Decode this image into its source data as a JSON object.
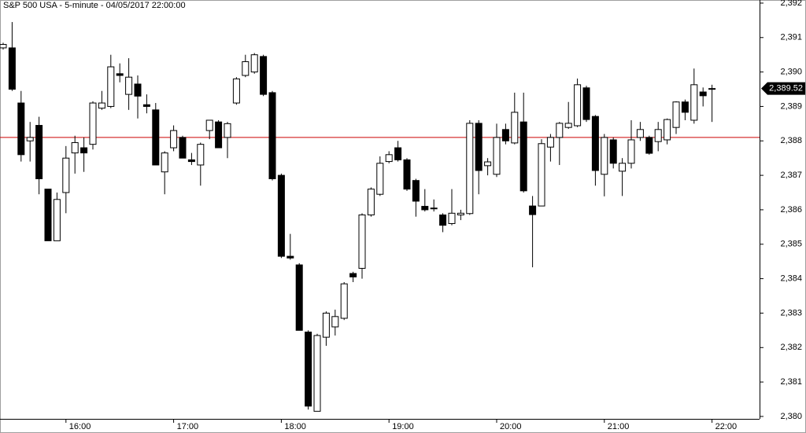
{
  "chart_data": {
    "type": "candlestick",
    "title": "S&P 500 USA - 5-minute - 04/05/2017 22:00:00",
    "categories": [
      null,
      null,
      null,
      null,
      null,
      null,
      null,
      "16:00",
      null,
      null,
      null,
      null,
      null,
      null,
      null,
      null,
      null,
      null,
      null,
      "17:00",
      null,
      null,
      null,
      null,
      null,
      null,
      null,
      null,
      null,
      null,
      null,
      "18:00",
      null,
      null,
      null,
      null,
      null,
      null,
      null,
      null,
      null,
      null,
      null,
      "19:00",
      null,
      null,
      null,
      null,
      null,
      null,
      null,
      null,
      null,
      null,
      null,
      "20:00",
      null,
      null,
      null,
      null,
      null,
      null,
      null,
      null,
      null,
      null,
      null,
      "21:00",
      null,
      null,
      null,
      null,
      null,
      null,
      null,
      null,
      null,
      null,
      null,
      "22:00"
    ],
    "open": [
      2390.7,
      2390.7,
      2389.1,
      2388.0,
      2388.45,
      2386.6,
      2385.1,
      2386.5,
      2387.65,
      2387.8,
      2387.9,
      2388.95,
      2389.0,
      2389.95,
      2389.35,
      2389.65,
      2389.05,
      2388.9,
      2387.1,
      2387.8,
      2388.1,
      2387.45,
      2387.3,
      2388.3,
      2388.55,
      2388.1,
      2389.1,
      2389.9,
      2390.0,
      2390.45,
      2389.4,
      2387.0,
      2384.65,
      2384.4,
      2382.45,
      2380.15,
      2382.3,
      2382.6,
      2382.85,
      2384.15,
      2384.3,
      2385.85,
      2386.45,
      2387.4,
      2387.8,
      2387.45,
      2386.85,
      2386.1,
      2386.05,
      2385.85,
      2385.6,
      2385.85,
      2385.89,
      2388.51,
      2387.28,
      2387.03,
      2388.33,
      2387.94,
      2388.55,
      2386.11,
      2386.11,
      2387.82,
      2388.1,
      2388.39,
      2388.44,
      2389.54,
      2388.71,
      2387.03,
      2388.03,
      2387.12,
      2387.35,
      2388.1,
      2388.1,
      2387.98,
      2388.03,
      2388.39,
      2389.13,
      2388.6,
      2389.42,
      2389.5
    ],
    "high": [
      2390.85,
      2391.45,
      2389.45,
      2388.55,
      2388.7,
      2386.6,
      2386.5,
      2387.85,
      2388.15,
      2388.1,
      2389.15,
      2389.45,
      2390.5,
      2390.25,
      2390.4,
      2389.9,
      2389.35,
      2389.1,
      2387.7,
      2388.45,
      2388.15,
      2387.65,
      2387.95,
      2388.6,
      2388.6,
      2388.55,
      2389.85,
      2390.5,
      2390.55,
      2390.5,
      2389.45,
      2387.05,
      2385.3,
      2384.45,
      2382.5,
      2382.4,
      2383.05,
      2383.1,
      2383.9,
      2384.2,
      2385.9,
      2386.65,
      2387.55,
      2387.7,
      2388.0,
      2387.5,
      2386.9,
      2386.6,
      2386.3,
      2385.9,
      2386.6,
      2386.0,
      2388.6,
      2388.6,
      2387.5,
      2388.5,
      2388.5,
      2389.4,
      2389.4,
      2386.4,
      2388.05,
      2388.2,
      2388.55,
      2389.13,
      2389.81,
      2389.6,
      2388.75,
      2388.2,
      2388.1,
      2387.5,
      2388.6,
      2388.55,
      2388.15,
      2388.55,
      2388.65,
      2389.15,
      2389.2,
      2390.1,
      2389.55,
      2389.63
    ],
    "low": [
      2390.65,
      2389.45,
      2387.4,
      2387.4,
      2386.45,
      2385.1,
      2385.1,
      2385.9,
      2387.05,
      2387.1,
      2387.75,
      2388.9,
      2388.95,
      2389.7,
      2388.9,
      2388.65,
      2388.8,
      2387.3,
      2386.45,
      2387.7,
      2387.5,
      2387.3,
      2386.7,
      2388.05,
      2387.8,
      2387.5,
      2389.05,
      2389.85,
      2389.95,
      2389.3,
      2386.85,
      2384.6,
      2384.55,
      2382.5,
      2380.2,
      2380.15,
      2382.05,
      2382.35,
      2382.8,
      2383.9,
      2384.0,
      2385.8,
      2386.4,
      2387.35,
      2387.4,
      2386.55,
      2385.8,
      2385.95,
      2385.95,
      2385.35,
      2385.55,
      2385.7,
      2385.85,
      2386.45,
      2387.0,
      2386.95,
      2387.9,
      2387.9,
      2386.5,
      2384.33,
      2386.1,
      2387.4,
      2387.3,
      2388.35,
      2388.4,
      2388.55,
      2386.7,
      2386.39,
      2387.2,
      2386.4,
      2387.2,
      2388.0,
      2387.6,
      2387.7,
      2387.9,
      2388.2,
      2388.6,
      2388.5,
      2389.0,
      2388.55
    ],
    "close": [
      2390.8,
      2389.5,
      2387.6,
      2388.1,
      2386.9,
      2385.1,
      2386.3,
      2387.5,
      2387.95,
      2387.65,
      2389.1,
      2389.1,
      2390.15,
      2389.9,
      2389.85,
      2389.3,
      2389.0,
      2387.3,
      2387.65,
      2388.3,
      2387.5,
      2387.4,
      2387.9,
      2388.6,
      2387.8,
      2388.5,
      2389.8,
      2390.3,
      2390.5,
      2389.35,
      2386.9,
      2384.65,
      2384.6,
      2382.5,
      2380.3,
      2382.35,
      2383.0,
      2382.9,
      2383.85,
      2384.05,
      2385.85,
      2386.6,
      2387.35,
      2387.6,
      2387.45,
      2386.6,
      2386.25,
      2386.0,
      2386.05,
      2385.55,
      2385.9,
      2385.9,
      2388.51,
      2387.14,
      2387.39,
      2388.1,
      2388.0,
      2388.83,
      2386.55,
      2385.86,
      2387.92,
      2388.1,
      2388.51,
      2388.51,
      2389.63,
      2388.62,
      2387.14,
      2388.1,
      2387.35,
      2387.35,
      2388.03,
      2388.33,
      2387.64,
      2388.33,
      2388.62,
      2389.13,
      2388.83,
      2389.63,
      2389.31,
      2389.52
    ],
    "up_color": "#ffffff",
    "down_color": "#000000",
    "ylim": [
      2379.93,
      2392.09
    ],
    "yticks": [
      {
        "value": 2380,
        "label": "2,380"
      },
      {
        "value": 2381,
        "label": "2,381"
      },
      {
        "value": 2382,
        "label": "2,382"
      },
      {
        "value": 2383,
        "label": "2,383"
      },
      {
        "value": 2384,
        "label": "2,384"
      },
      {
        "value": 2385,
        "label": "2,385"
      },
      {
        "value": 2386,
        "label": "2,386"
      },
      {
        "value": 2387,
        "label": "2,387"
      },
      {
        "value": 2388,
        "label": "2,388"
      },
      {
        "value": 2389,
        "label": "2,389"
      },
      {
        "value": 2390,
        "label": "2,390"
      },
      {
        "value": 2391,
        "label": "2,391"
      },
      {
        "value": 2392,
        "label": "2,392"
      }
    ],
    "reference_line": {
      "value": 2388.1,
      "color": "#cc0000"
    },
    "last_price": {
      "value": 2389.52,
      "label": "2,389.52"
    },
    "grid": false
  }
}
